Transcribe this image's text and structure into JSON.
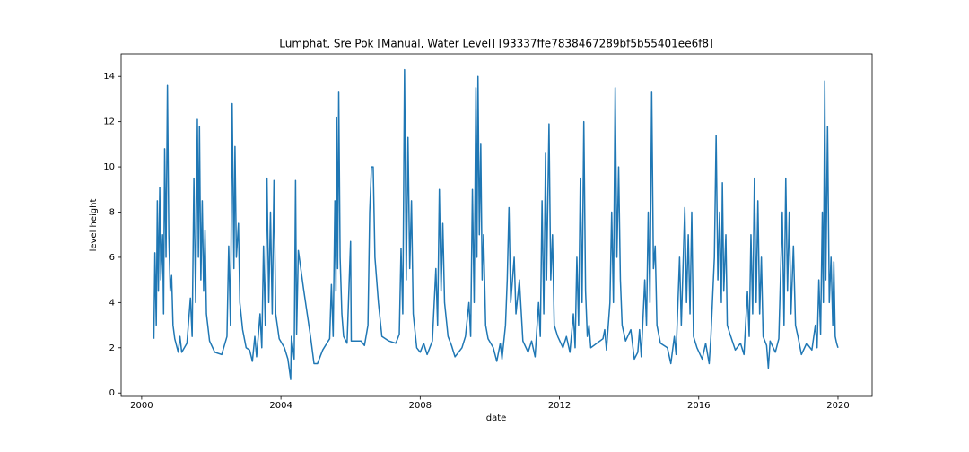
{
  "chart_data": {
    "type": "line",
    "title": "Lumphat, Sre Pok [Manual, Water Level] [93337ffe7838467289bf5b55401ee6f8]",
    "x_label": "date",
    "y_label": "level height",
    "color": "#1f77b4",
    "xlim": [
      1999.41,
      2020.98
    ],
    "ylim": [
      -0.15,
      15.0
    ],
    "xticks": [
      2000,
      2004,
      2008,
      2012,
      2016,
      2020
    ],
    "yticks": [
      0,
      2,
      4,
      6,
      8,
      10,
      12,
      14
    ],
    "x": [
      2000.35,
      2000.38,
      2000.42,
      2000.45,
      2000.48,
      2000.52,
      2000.55,
      2000.6,
      2000.63,
      2000.66,
      2000.7,
      2000.74,
      2000.78,
      2000.82,
      2000.86,
      2000.9,
      2000.95,
      2001.05,
      2001.1,
      2001.15,
      2001.3,
      2001.4,
      2001.45,
      2001.5,
      2001.55,
      2001.6,
      2001.63,
      2001.66,
      2001.7,
      2001.74,
      2001.78,
      2001.82,
      2001.86,
      2001.95,
      2002.1,
      2002.3,
      2002.45,
      2002.5,
      2002.55,
      2002.6,
      2002.65,
      2002.68,
      2002.72,
      2002.78,
      2002.82,
      2002.9,
      2003.0,
      2003.1,
      2003.18,
      2003.25,
      2003.3,
      2003.4,
      2003.45,
      2003.5,
      2003.55,
      2003.6,
      2003.65,
      2003.7,
      2003.75,
      2003.8,
      2003.85,
      2003.95,
      2004.1,
      2004.2,
      2004.28,
      2004.3,
      2004.38,
      2004.42,
      2004.45,
      2004.5,
      2004.65,
      2004.85,
      2004.95,
      2005.05,
      2005.2,
      2005.4,
      2005.45,
      2005.5,
      2005.55,
      2005.58,
      2005.6,
      2005.63,
      2005.66,
      2005.7,
      2005.75,
      2005.8,
      2005.9,
      2006.0,
      2006.02,
      2006.3,
      2006.4,
      2006.5,
      2006.55,
      2006.6,
      2006.65,
      2006.7,
      2006.8,
      2006.9,
      2007.1,
      2007.3,
      2007.4,
      2007.45,
      2007.5,
      2007.55,
      2007.6,
      2007.65,
      2007.7,
      2007.75,
      2007.8,
      2007.9,
      2008.0,
      2008.1,
      2008.2,
      2008.35,
      2008.45,
      2008.5,
      2008.55,
      2008.6,
      2008.65,
      2008.7,
      2008.8,
      2008.9,
      2009.0,
      2009.2,
      2009.3,
      2009.4,
      2009.45,
      2009.5,
      2009.55,
      2009.6,
      2009.63,
      2009.66,
      2009.7,
      2009.74,
      2009.78,
      2009.82,
      2009.88,
      2009.95,
      2010.1,
      2010.2,
      2010.3,
      2010.35,
      2010.45,
      2010.5,
      2010.55,
      2010.6,
      2010.7,
      2010.75,
      2010.85,
      2010.95,
      2011.1,
      2011.2,
      2011.3,
      2011.4,
      2011.45,
      2011.5,
      2011.55,
      2011.6,
      2011.63,
      2011.7,
      2011.75,
      2011.8,
      2011.85,
      2011.95,
      2012.1,
      2012.2,
      2012.3,
      2012.4,
      2012.45,
      2012.5,
      2012.55,
      2012.6,
      2012.65,
      2012.7,
      2012.75,
      2012.8,
      2012.85,
      2012.9,
      2013.25,
      2013.3,
      2013.35,
      2013.45,
      2013.5,
      2013.55,
      2013.6,
      2013.65,
      2013.7,
      2013.75,
      2013.8,
      2013.9,
      2014.05,
      2014.15,
      2014.25,
      2014.3,
      2014.35,
      2014.45,
      2014.5,
      2014.55,
      2014.6,
      2014.65,
      2014.7,
      2014.75,
      2014.8,
      2014.9,
      2015.1,
      2015.2,
      2015.3,
      2015.35,
      2015.45,
      2015.5,
      2015.6,
      2015.65,
      2015.7,
      2015.75,
      2015.8,
      2015.85,
      2015.95,
      2016.1,
      2016.2,
      2016.3,
      2016.35,
      2016.45,
      2016.5,
      2016.55,
      2016.6,
      2016.65,
      2016.68,
      2016.72,
      2016.78,
      2016.82,
      2016.9,
      2017.05,
      2017.2,
      2017.3,
      2017.4,
      2017.45,
      2017.5,
      2017.55,
      2017.6,
      2017.65,
      2017.7,
      2017.75,
      2017.8,
      2017.85,
      2017.95,
      2018.0,
      2018.05,
      2018.2,
      2018.3,
      2018.4,
      2018.45,
      2018.5,
      2018.55,
      2018.6,
      2018.65,
      2018.72,
      2018.78,
      2018.85,
      2018.95,
      2019.1,
      2019.25,
      2019.35,
      2019.4,
      2019.45,
      2019.5,
      2019.55,
      2019.58,
      2019.62,
      2019.65,
      2019.7,
      2019.75,
      2019.8,
      2019.85,
      2019.88,
      2019.92,
      2019.96,
      2020.0
    ],
    "values": [
      2.4,
      6.2,
      3.0,
      8.5,
      4.5,
      9.1,
      5.0,
      7.0,
      3.5,
      10.8,
      6.0,
      13.6,
      7.0,
      4.5,
      5.2,
      3.0,
      2.4,
      1.8,
      2.5,
      1.8,
      2.2,
      4.2,
      2.5,
      9.5,
      4.0,
      12.1,
      6.0,
      11.8,
      5.0,
      8.5,
      4.5,
      7.2,
      3.5,
      2.3,
      1.8,
      1.7,
      2.5,
      6.5,
      3.0,
      12.8,
      5.5,
      10.9,
      6.0,
      7.5,
      4.0,
      2.8,
      2.0,
      1.9,
      1.4,
      2.5,
      1.6,
      3.5,
      2.0,
      6.5,
      3.0,
      9.5,
      4.0,
      8.0,
      3.5,
      9.4,
      3.5,
      2.4,
      2.0,
      1.5,
      0.6,
      2.5,
      1.5,
      9.4,
      2.6,
      6.3,
      4.6,
      2.5,
      1.3,
      1.3,
      1.9,
      2.4,
      4.8,
      2.5,
      8.5,
      4.5,
      12.2,
      5.5,
      13.3,
      6.0,
      3.5,
      2.5,
      2.2,
      6.7,
      2.3,
      2.3,
      2.1,
      3.0,
      8.0,
      10.0,
      10.0,
      6.0,
      4.0,
      2.5,
      2.3,
      2.2,
      2.6,
      6.4,
      3.5,
      14.3,
      5.0,
      11.3,
      5.5,
      8.5,
      3.5,
      2.0,
      1.8,
      2.2,
      1.7,
      2.3,
      5.5,
      3.0,
      9.0,
      4.5,
      7.5,
      4.0,
      2.5,
      2.1,
      1.6,
      2.0,
      2.5,
      4.0,
      2.5,
      9.0,
      4.0,
      13.5,
      6.0,
      14.0,
      7.0,
      11.0,
      5.0,
      7.0,
      3.0,
      2.4,
      2.0,
      1.4,
      2.2,
      1.5,
      3.0,
      5.0,
      8.2,
      4.0,
      6.0,
      3.5,
      5.0,
      2.3,
      1.8,
      2.3,
      1.6,
      4.0,
      2.5,
      8.5,
      3.5,
      10.6,
      5.0,
      11.9,
      5.0,
      7.0,
      3.0,
      2.5,
      2.0,
      2.5,
      1.8,
      3.5,
      2.0,
      6.0,
      3.0,
      9.5,
      4.0,
      12.0,
      4.5,
      2.5,
      3.0,
      2.0,
      2.4,
      2.8,
      1.9,
      4.0,
      8.0,
      4.0,
      13.5,
      6.0,
      10.0,
      5.0,
      3.0,
      2.3,
      2.8,
      1.5,
      1.8,
      2.8,
      1.6,
      5.0,
      3.0,
      8.0,
      4.0,
      13.3,
      5.5,
      6.5,
      3.0,
      2.2,
      2.0,
      1.3,
      2.5,
      1.7,
      6.0,
      3.0,
      8.2,
      4.0,
      7.0,
      3.5,
      8.0,
      2.5,
      2.0,
      1.5,
      2.2,
      1.3,
      2.5,
      6.0,
      11.4,
      5.0,
      8.0,
      4.0,
      9.3,
      4.5,
      7.0,
      3.0,
      2.6,
      1.9,
      2.2,
      1.7,
      4.5,
      2.5,
      7.0,
      3.5,
      9.5,
      4.0,
      8.5,
      3.5,
      6.0,
      2.5,
      2.1,
      1.1,
      2.3,
      1.8,
      2.4,
      8.0,
      3.0,
      9.5,
      4.5,
      8.0,
      3.5,
      6.5,
      3.0,
      2.5,
      1.7,
      2.2,
      1.9,
      3.0,
      2.0,
      5.0,
      2.6,
      8.0,
      4.0,
      13.8,
      5.0,
      11.8,
      4.0,
      6.0,
      3.0,
      5.8,
      2.5,
      2.2,
      2.0
    ]
  }
}
